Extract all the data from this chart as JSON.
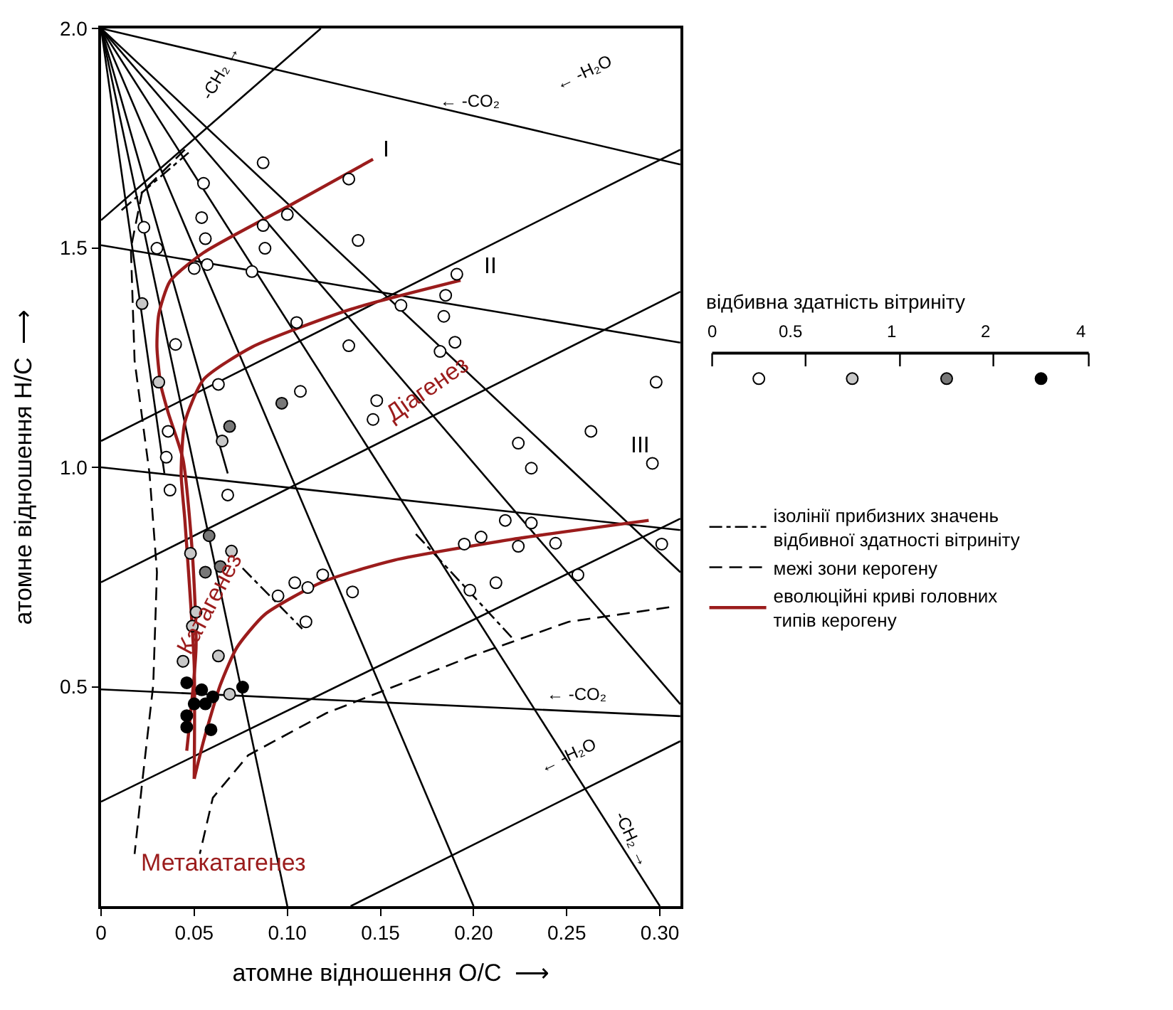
{
  "chart_data": {
    "type": "scatter",
    "xlabel": "атомне відношення O/C  ⟶",
    "ylabel": "атомне відношення H/C  ⟶",
    "xlim": [
      0,
      0.311
    ],
    "ylim": [
      0,
      2.0
    ],
    "xticks": [
      0,
      {
        "value": 0.05,
        "label": "0.05"
      },
      {
        "value": 0.1,
        "label": "0.10"
      },
      {
        "value": 0.15,
        "label": "0.15"
      },
      {
        "value": 0.2,
        "label": "0.20"
      },
      {
        "value": 0.25,
        "label": "0.25"
      },
      {
        "value": 0.3,
        "label": "0.30"
      }
    ],
    "yticks": [
      {
        "value": 0.5,
        "label": "0.5"
      },
      {
        "value": 1.0,
        "label": "1.0"
      },
      {
        "value": 1.5,
        "label": "1.5"
      },
      {
        "value": 2.0,
        "label": "2.0"
      }
    ],
    "legend": "right",
    "series": [
      {
        "type": "line",
        "color": "#000000",
        "line_style": "solid",
        "x": [
          0,
          0.311
        ],
        "values": [
          2.0,
          1.69
        ]
      },
      {
        "type": "line",
        "color": "#000000",
        "line_style": "solid",
        "x": [
          0,
          0.311
        ],
        "values": [
          1.506,
          1.284
        ]
      },
      {
        "type": "line",
        "color": "#000000",
        "line_style": "solid",
        "x": [
          0,
          0.311
        ],
        "values": [
          1.0,
          0.857
        ]
      },
      {
        "type": "line",
        "color": "#000000",
        "line_style": "solid",
        "x": [
          0,
          0.311
        ],
        "values": [
          0.494,
          0.433
        ]
      },
      {
        "type": "line",
        "color": "#000000",
        "line_style": "solid",
        "x": [
          0,
          0.118
        ],
        "values": [
          1.563,
          2.0
        ]
      },
      {
        "type": "line",
        "color": "#000000",
        "line_style": "solid",
        "x": [
          0,
          0.311
        ],
        "values": [
          1.06,
          1.724
        ]
      },
      {
        "type": "line",
        "color": "#000000",
        "line_style": "solid",
        "x": [
          0,
          0.311
        ],
        "values": [
          0.738,
          1.4
        ]
      },
      {
        "type": "line",
        "color": "#000000",
        "line_style": "solid",
        "x": [
          0,
          0.311
        ],
        "values": [
          0.238,
          0.883
        ]
      },
      {
        "type": "line",
        "color": "#000000",
        "line_style": "solid",
        "x": [
          0.134,
          0.311
        ],
        "values": [
          0,
          0.376
        ]
      },
      {
        "type": "line",
        "color": "#000000",
        "line_style": "solid",
        "x": [
          0,
          0.1
        ],
        "values": [
          2.0,
          0
        ]
      },
      {
        "type": "line",
        "color": "#000000",
        "line_style": "solid",
        "x": [
          0,
          0.2
        ],
        "values": [
          2.0,
          0
        ]
      },
      {
        "type": "line",
        "color": "#000000",
        "line_style": "solid",
        "x": [
          0,
          0.3
        ],
        "values": [
          2.0,
          0
        ]
      },
      {
        "type": "line",
        "color": "#000000",
        "line_style": "solid",
        "x": [
          0,
          0.311
        ],
        "values": [
          2.0,
          0.46
        ]
      },
      {
        "type": "line",
        "color": "#000000",
        "line_style": "solid",
        "x": [
          0,
          0.311
        ],
        "values": [
          2.0,
          0.761
        ]
      },
      {
        "type": "line",
        "color": "#000000",
        "line_style": "solid",
        "x": [
          0,
          0.034
        ],
        "values": [
          2.0,
          0.986
        ]
      },
      {
        "type": "line",
        "color": "#000000",
        "line_style": "solid",
        "x": [
          0,
          0.068
        ],
        "values": [
          2.0,
          0.986
        ]
      },
      {
        "type": "line",
        "color": "#000000",
        "line_style": "dashdot",
        "name": "ізолінії прибизних значень\nвідбивної здатності вітриніту",
        "x": [
          0.011,
          0.047
        ],
        "values": [
          1.586,
          1.717
        ]
      },
      {
        "type": "line",
        "color": "#000000",
        "line_style": "dashdot",
        "x": [
          0.076,
          0.108
        ],
        "values": [
          0.77,
          0.632
        ]
      },
      {
        "type": "line",
        "color": "#000000",
        "line_style": "dashdot",
        "x": [
          0.169,
          0.221
        ],
        "values": [
          0.848,
          0.61
        ]
      },
      {
        "type": "line",
        "color": "#000000",
        "line_style": "dashed",
        "name": "межі зони керогену",
        "x": [
          0.045,
          0.022,
          0.016,
          0.018,
          0.026,
          0.03,
          0.028,
          0.022,
          0.018
        ],
        "values": [
          1.724,
          1.627,
          1.499,
          1.243,
          0.986,
          0.761,
          0.504,
          0.279,
          0.119
        ]
      },
      {
        "type": "line",
        "color": "#000000",
        "line_style": "dashed",
        "x": [
          0.305,
          0.251,
          0.198,
          0.121,
          0.079,
          0.06,
          0.053
        ],
        "values": [
          0.681,
          0.648,
          0.568,
          0.44,
          0.344,
          0.247,
          0.119
        ]
      },
      {
        "type": "line",
        "color": "#9b1c1c",
        "line_style": "solid",
        "name": "еволюційні криві головних\nтипів керогену",
        "x": [
          0.146,
          0.101,
          0.055,
          0.037,
          0.031,
          0.03,
          0.032,
          0.036,
          0.044,
          0.049,
          0.051,
          0.046
        ],
        "values": [
          1.702,
          1.596,
          1.489,
          1.424,
          1.349,
          1.274,
          1.189,
          1.125,
          1.018,
          0.804,
          0.59,
          0.354
        ]
      },
      {
        "type": "line",
        "color": "#9b1c1c",
        "line_style": "solid",
        "x": [
          0.193,
          0.134,
          0.081,
          0.055,
          0.045,
          0.043,
          0.045,
          0.05,
          0.05
        ],
        "values": [
          1.426,
          1.36,
          1.274,
          1.2,
          1.103,
          0.986,
          0.879,
          0.55,
          0.29
        ]
      },
      {
        "type": "line",
        "color": "#9b1c1c",
        "line_style": "solid",
        "x": [
          0.294,
          0.221,
          0.157,
          0.119,
          0.088,
          0.073,
          0.064,
          0.055,
          0.05
        ],
        "values": [
          0.879,
          0.836,
          0.788,
          0.739,
          0.665,
          0.59,
          0.504,
          0.376,
          0.29
        ]
      },
      {
        "marker": "circle",
        "color": "#ffffff",
        "x": [
          0.087,
          0.133,
          0.1,
          0.087,
          0.138,
          0.088,
          0.055,
          0.054,
          0.056,
          0.023,
          0.03,
          0.05,
          0.057,
          0.081,
          0.105,
          0.133,
          0.184,
          0.19,
          0.182,
          0.107,
          0.148,
          0.146,
          0.298,
          0.263,
          0.224,
          0.04,
          0.063,
          0.036,
          0.035,
          0.191,
          0.185,
          0.161,
          0.037,
          0.068,
          0.231,
          0.296,
          0.217,
          0.231,
          0.204,
          0.195,
          0.224,
          0.244,
          0.301,
          0.256,
          0.212,
          0.198,
          0.119,
          0.104,
          0.111,
          0.095,
          0.135,
          0.11
        ],
        "values": [
          1.694,
          1.657,
          1.576,
          1.551,
          1.517,
          1.499,
          1.647,
          1.569,
          1.521,
          1.547,
          1.499,
          1.453,
          1.462,
          1.446,
          1.33,
          1.277,
          1.344,
          1.285,
          1.264,
          1.173,
          1.152,
          1.109,
          1.194,
          1.082,
          1.055,
          1.28,
          1.189,
          1.082,
          1.023,
          1.44,
          1.392,
          1.369,
          0.948,
          0.937,
          0.998,
          1.009,
          0.879,
          0.873,
          0.841,
          0.825,
          0.82,
          0.827,
          0.825,
          0.755,
          0.737,
          0.72,
          0.755,
          0.737,
          0.726,
          0.707,
          0.716,
          0.648
        ]
      },
      {
        "marker": "circle",
        "color": "#c8c8c8",
        "x": [
          0.022,
          0.031,
          0.065,
          0.051,
          0.049,
          0.063,
          0.044,
          0.048,
          0.07,
          0.069
        ],
        "values": [
          1.373,
          1.194,
          1.06,
          0.67,
          0.638,
          0.57,
          0.558,
          0.804,
          0.809,
          0.483
        ]
      },
      {
        "marker": "circle",
        "color": "#787878",
        "x": [
          0.069,
          0.097,
          0.056,
          0.064,
          0.058
        ],
        "values": [
          1.093,
          1.146,
          0.761,
          0.774,
          0.844
        ]
      },
      {
        "marker": "circle",
        "color": "#000000",
        "x": [
          0.046,
          0.046,
          0.06,
          0.056,
          0.05,
          0.046,
          0.059,
          0.076,
          0.054
        ],
        "values": [
          0.509,
          0.434,
          0.477,
          0.461,
          0.461,
          0.408,
          0.402,
          0.499,
          0.493
        ]
      }
    ],
    "annotations": [
      "-CH₂ →",
      "← -CO₂",
      "← -H₂O",
      "← -CO₂",
      "← -H₂O",
      "-CH₂ →",
      "I",
      "II",
      "III",
      "Діагенез",
      "Катагенез",
      "Метакатагенез",
      "відбивна здатність вітриніту",
      "0",
      "0.5",
      "1",
      "2",
      "4"
    ]
  }
}
